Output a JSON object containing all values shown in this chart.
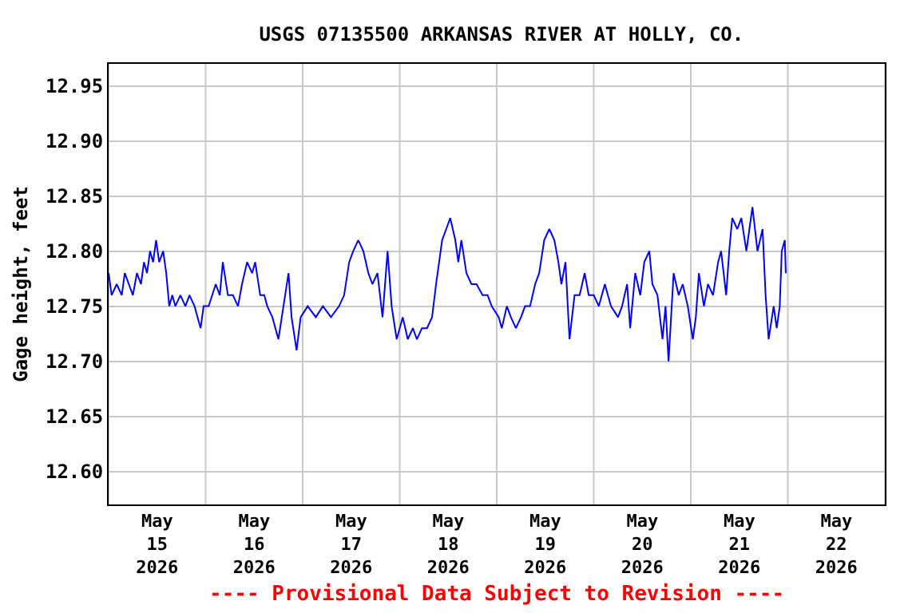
{
  "chart_data": {
    "type": "line",
    "title": "USGS 07135500 ARKANSAS RIVER AT HOLLY, CO.",
    "ylabel": "Gage height, feet",
    "annotations": [
      "---- Provisional Data Subject to Revision ----"
    ],
    "xlim": [
      "2026-05-15",
      "2026-05-23"
    ],
    "xticks": [
      {
        "value": "2026-05-15",
        "label": null
      },
      {
        "value": "2026-05-15T12:00",
        "label": "May\n15\n2026"
      },
      {
        "value": "2026-05-16",
        "label": null
      },
      {
        "value": "2026-05-16T12:00",
        "label": "May\n16\n2026"
      },
      {
        "value": "2026-05-17",
        "label": null
      },
      {
        "value": "2026-05-17T12:00",
        "label": "May\n17\n2026"
      },
      {
        "value": "2026-05-18",
        "label": null
      },
      {
        "value": "2026-05-18T12:00",
        "label": "May\n18\n2026"
      },
      {
        "value": "2026-05-19",
        "label": null
      },
      {
        "value": "2026-05-19T12:00",
        "label": "May\n19\n2026"
      },
      {
        "value": "2026-05-20",
        "label": null
      },
      {
        "value": "2026-05-20T12:00",
        "label": "May\n20\n2026"
      },
      {
        "value": "2026-05-21",
        "label": null
      },
      {
        "value": "2026-05-21T12:00",
        "label": "May\n21\n2026"
      },
      {
        "value": "2026-05-22",
        "label": null
      },
      {
        "value": "2026-05-22T12:00",
        "label": "May\n22\n2026"
      },
      {
        "value": "2026-05-23",
        "label": null
      }
    ],
    "ylim": [
      12.57,
      12.97
    ],
    "yticks": [
      {
        "value": 12.6,
        "label": "12.60"
      },
      12.65,
      {
        "value": 12.7,
        "label": "12.70"
      },
      12.75,
      {
        "value": 12.8,
        "label": "12.80"
      },
      12.85,
      {
        "value": 12.9,
        "label": "12.90"
      },
      12.95
    ],
    "grid": true,
    "marker": "none",
    "line_style": "solid",
    "x": [
      "2026-05-15T00:00",
      "2026-05-15T00:45",
      "2026-05-15T02:00",
      "2026-05-15T03:15",
      "2026-05-15T04:00",
      "2026-05-15T05:00",
      "2026-05-15T06:00",
      "2026-05-15T07:00",
      "2026-05-15T08:00",
      "2026-05-15T08:45",
      "2026-05-15T09:30",
      "2026-05-15T10:15",
      "2026-05-15T11:00",
      "2026-05-15T11:45",
      "2026-05-15T12:30",
      "2026-05-15T13:30",
      "2026-05-15T14:15",
      "2026-05-15T15:00",
      "2026-05-15T15:45",
      "2026-05-15T16:30",
      "2026-05-15T17:45",
      "2026-05-15T19:00",
      "2026-05-15T20:00",
      "2026-05-15T21:15",
      "2026-05-15T22:00",
      "2026-05-15T22:45",
      "2026-05-15T23:30",
      "2026-05-16T00:45",
      "2026-05-16T02:30",
      "2026-05-16T03:30",
      "2026-05-16T04:15",
      "2026-05-16T05:30",
      "2026-05-16T06:45",
      "2026-05-16T08:00",
      "2026-05-16T09:00",
      "2026-05-16T10:15",
      "2026-05-16T11:30",
      "2026-05-16T12:15",
      "2026-05-16T13:30",
      "2026-05-16T14:30",
      "2026-05-16T15:15",
      "2026-05-16T16:30",
      "2026-05-16T18:00",
      "2026-05-16T19:15",
      "2026-05-16T20:30",
      "2026-05-16T21:15",
      "2026-05-16T22:30",
      "2026-05-16T23:30",
      "2026-05-17T01:15",
      "2026-05-17T03:15",
      "2026-05-17T05:00",
      "2026-05-17T07:00",
      "2026-05-17T09:00",
      "2026-05-17T10:15",
      "2026-05-17T11:30",
      "2026-05-17T12:30",
      "2026-05-17T13:45",
      "2026-05-17T15:00",
      "2026-05-17T16:15",
      "2026-05-17T17:15",
      "2026-05-17T18:30",
      "2026-05-17T19:45",
      "2026-05-17T21:00",
      "2026-05-17T22:00",
      "2026-05-17T23:15",
      "2026-05-18T00:45",
      "2026-05-18T02:00",
      "2026-05-18T03:15",
      "2026-05-18T04:15",
      "2026-05-18T05:30",
      "2026-05-18T06:45",
      "2026-05-18T08:00",
      "2026-05-18T09:00",
      "2026-05-18T09:45",
      "2026-05-18T10:30",
      "2026-05-18T11:30",
      "2026-05-18T12:30",
      "2026-05-18T13:45",
      "2026-05-18T14:30",
      "2026-05-18T15:15",
      "2026-05-18T16:30",
      "2026-05-18T17:45",
      "2026-05-18T19:00",
      "2026-05-18T20:30",
      "2026-05-18T21:45",
      "2026-05-18T22:45",
      "2026-05-19T00:30",
      "2026-05-19T01:15",
      "2026-05-19T02:30",
      "2026-05-19T03:30",
      "2026-05-19T04:45",
      "2026-05-19T06:00",
      "2026-05-19T07:00",
      "2026-05-19T08:15",
      "2026-05-19T09:30",
      "2026-05-19T10:30",
      "2026-05-19T11:45",
      "2026-05-19T13:00",
      "2026-05-19T14:15",
      "2026-05-19T15:15",
      "2026-05-19T16:00",
      "2026-05-19T17:00",
      "2026-05-19T18:00",
      "2026-05-19T19:15",
      "2026-05-19T20:30",
      "2026-05-19T21:45",
      "2026-05-19T22:45",
      "2026-05-20T00:00",
      "2026-05-20T01:15",
      "2026-05-20T02:45",
      "2026-05-20T04:15",
      "2026-05-20T06:00",
      "2026-05-20T07:00",
      "2026-05-20T08:15",
      "2026-05-20T09:00",
      "2026-05-20T10:15",
      "2026-05-20T11:30",
      "2026-05-20T12:30",
      "2026-05-20T13:45",
      "2026-05-20T14:30",
      "2026-05-20T15:45",
      "2026-05-20T17:00",
      "2026-05-20T17:45",
      "2026-05-20T18:30",
      "2026-05-20T19:45",
      "2026-05-20T21:00",
      "2026-05-20T22:00",
      "2026-05-20T23:15",
      "2026-05-21T00:30",
      "2026-05-21T01:15",
      "2026-05-21T02:00",
      "2026-05-21T03:15",
      "2026-05-21T04:15",
      "2026-05-21T05:30",
      "2026-05-21T06:45",
      "2026-05-21T07:30",
      "2026-05-21T08:45",
      "2026-05-21T09:30",
      "2026-05-21T10:15",
      "2026-05-21T11:30",
      "2026-05-21T12:30",
      "2026-05-21T13:45",
      "2026-05-21T14:30",
      "2026-05-21T15:15",
      "2026-05-21T16:30",
      "2026-05-21T17:45",
      "2026-05-21T18:30",
      "2026-05-21T19:15",
      "2026-05-21T20:30",
      "2026-05-21T21:15",
      "2026-05-21T22:00",
      "2026-05-21T22:30",
      "2026-05-21T23:15",
      "2026-05-21T23:30"
    ],
    "series": [
      {
        "color": "#0000ff",
        "values": [
          12.78,
          12.76,
          12.77,
          12.76,
          12.78,
          12.77,
          12.76,
          12.78,
          12.77,
          12.79,
          12.78,
          12.8,
          12.79,
          12.81,
          12.79,
          12.8,
          12.78,
          12.75,
          12.76,
          12.75,
          12.76,
          12.75,
          12.76,
          12.75,
          12.74,
          12.73,
          12.75,
          12.75,
          12.77,
          12.76,
          12.79,
          12.76,
          12.76,
          12.75,
          12.77,
          12.79,
          12.78,
          12.79,
          12.76,
          12.76,
          12.75,
          12.74,
          12.72,
          12.75,
          12.78,
          12.74,
          12.71,
          12.74,
          12.75,
          12.74,
          12.75,
          12.74,
          12.75,
          12.76,
          12.79,
          12.8,
          12.81,
          12.8,
          12.78,
          12.77,
          12.78,
          12.74,
          12.8,
          12.75,
          12.72,
          12.74,
          12.72,
          12.73,
          12.72,
          12.73,
          12.73,
          12.74,
          12.77,
          12.79,
          12.81,
          12.82,
          12.83,
          12.81,
          12.79,
          12.81,
          12.78,
          12.77,
          12.77,
          12.76,
          12.76,
          12.75,
          12.74,
          12.73,
          12.75,
          12.74,
          12.73,
          12.74,
          12.75,
          12.75,
          12.77,
          12.78,
          12.81,
          12.82,
          12.81,
          12.79,
          12.77,
          12.79,
          12.72,
          12.76,
          12.76,
          12.78,
          12.76,
          12.76,
          12.75,
          12.77,
          12.75,
          12.74,
          12.75,
          12.77,
          12.73,
          12.78,
          12.76,
          12.79,
          12.8,
          12.77,
          12.76,
          12.72,
          12.75,
          12.7,
          12.78,
          12.76,
          12.77,
          12.75,
          12.72,
          12.74,
          12.78,
          12.75,
          12.77,
          12.76,
          12.79,
          12.8,
          12.76,
          12.8,
          12.83,
          12.82,
          12.83,
          12.8,
          12.82,
          12.84,
          12.8,
          12.82,
          12.76,
          12.72,
          12.75,
          12.73,
          12.75,
          12.8,
          12.81,
          12.78
        ]
      }
    ]
  }
}
